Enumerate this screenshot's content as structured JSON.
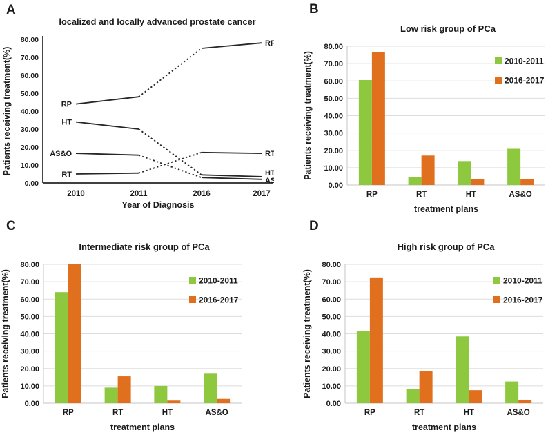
{
  "figure": {
    "background": "#FFFFFF",
    "panel_letters": [
      "A",
      "B",
      "C",
      "D"
    ]
  },
  "colors": {
    "ink": "#1A1A1A",
    "line": "#262626",
    "grid": "#DDDDDD",
    "axis_gray": "#C6C6C6",
    "green": "#8DC83E",
    "orange": "#E0701E"
  },
  "chart_data": [
    {
      "panel": "A",
      "type": "line",
      "title": "localized and locally advanced prostate cancer",
      "xlabel": "Year of Diagnosis",
      "ylabel": "Patients receiving treatment(%)",
      "ylim": [
        0,
        80
      ],
      "ytick_step": 10,
      "ytick_format": "two-decimals",
      "grid": false,
      "x": [
        "2010",
        "2011",
        "2016",
        "2017"
      ],
      "segment_styles": [
        "solid",
        "dotted",
        "solid"
      ],
      "series": [
        {
          "name": "RP",
          "values": [
            44,
            48,
            75,
            78
          ]
        },
        {
          "name": "HT",
          "values": [
            34,
            30,
            4.5,
            3.5
          ]
        },
        {
          "name": "AS&O",
          "values": [
            16.5,
            15.5,
            3,
            2
          ]
        },
        {
          "name": "RT",
          "values": [
            5,
            5.5,
            17,
            16.5
          ]
        }
      ],
      "series_labels": "at both line ends"
    },
    {
      "panel": "B",
      "type": "bar",
      "title": "Low risk group of PCa",
      "xlabel": "treatment plans",
      "ylabel": "Patients receiving treatment(%)",
      "ylim": [
        0,
        80
      ],
      "ytick_step": 10,
      "grid": true,
      "legend_position": "top-right",
      "categories": [
        "RP",
        "RT",
        "HT",
        "AS&O"
      ],
      "series": [
        {
          "name": "2010-2011",
          "color_key": "green",
          "values": [
            60.5,
            4.5,
            13.8,
            20.9
          ]
        },
        {
          "name": "2016-2017",
          "color_key": "orange",
          "values": [
            76.5,
            17,
            3.2,
            3.2
          ]
        }
      ]
    },
    {
      "panel": "C",
      "type": "bar",
      "title": "Intermediate risk group of  PCa",
      "xlabel": "treatment plans",
      "ylabel": "Patients receiving treatment(%)",
      "ylim": [
        0,
        80
      ],
      "ytick_step": 10,
      "grid": true,
      "legend_position": "top-right",
      "categories": [
        "RP",
        "RT",
        "HT",
        "AS&O"
      ],
      "series": [
        {
          "name": "2010-2011",
          "color_key": "green",
          "values": [
            64,
            9,
            10,
            17
          ]
        },
        {
          "name": "2016-2017",
          "color_key": "orange",
          "values": [
            80,
            15.5,
            1.5,
            2.5
          ]
        }
      ]
    },
    {
      "panel": "D",
      "type": "bar",
      "title": "High risk group of PCa",
      "xlabel": "treatment plans",
      "ylabel": "Patients receiving treatment(%)",
      "ylim": [
        0,
        80
      ],
      "ytick_step": 10,
      "grid": true,
      "legend_position": "top-right",
      "categories": [
        "RP",
        "RT",
        "HT",
        "AS&O"
      ],
      "series": [
        {
          "name": "2010-2011",
          "color_key": "green",
          "values": [
            41.5,
            8,
            38.5,
            12.5
          ]
        },
        {
          "name": "2016-2017",
          "color_key": "orange",
          "values": [
            72.5,
            18.5,
            7.5,
            2
          ]
        }
      ]
    }
  ]
}
